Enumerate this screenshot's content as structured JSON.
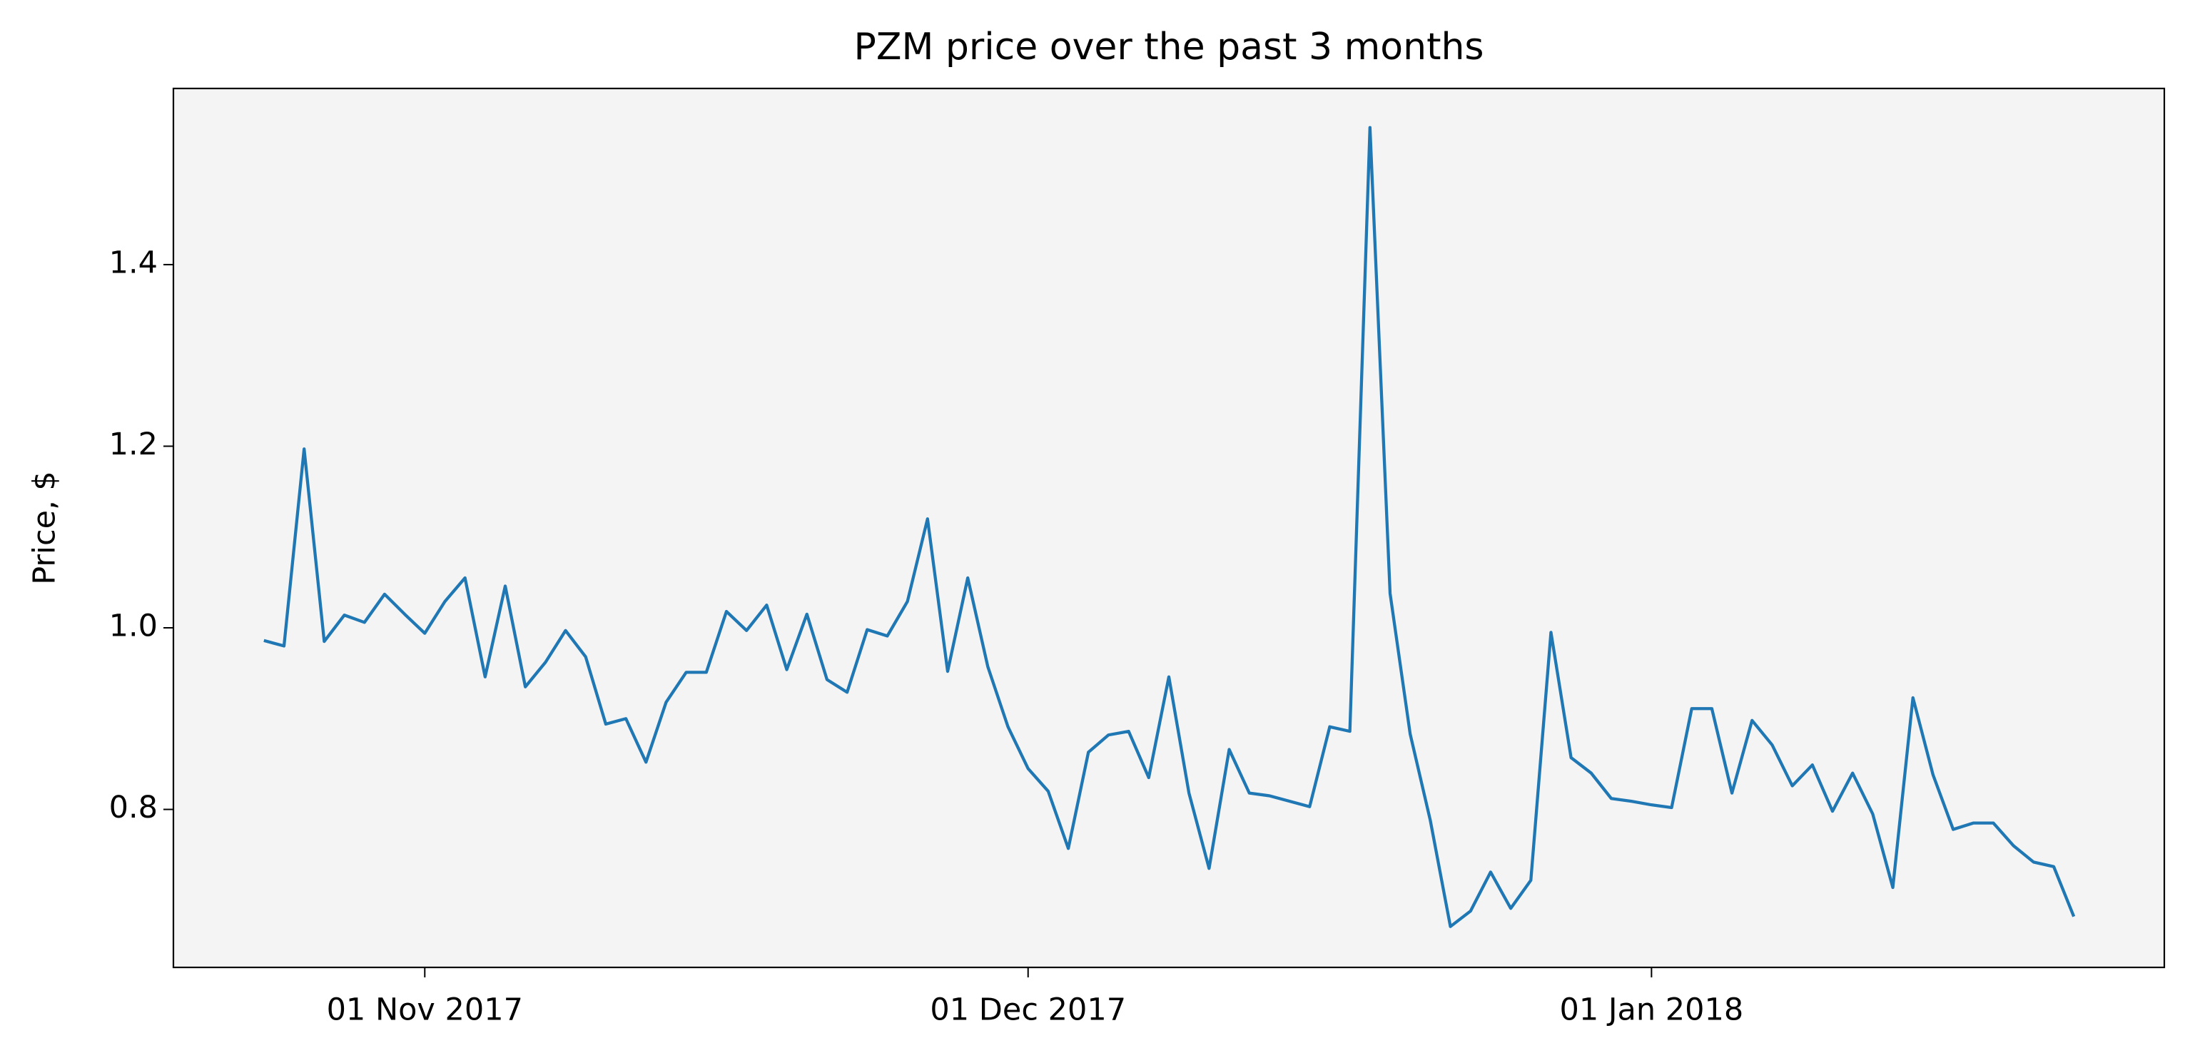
{
  "chart_data": {
    "type": "line",
    "title": "PZM price over the past 3 months",
    "ylabel": "Price, $",
    "x": [
      "2017-10-24",
      "2017-10-25",
      "2017-10-26",
      "2017-10-27",
      "2017-10-28",
      "2017-10-29",
      "2017-10-30",
      "2017-10-31",
      "2017-11-01",
      "2017-11-02",
      "2017-11-03",
      "2017-11-04",
      "2017-11-05",
      "2017-11-06",
      "2017-11-07",
      "2017-11-08",
      "2017-11-09",
      "2017-11-10",
      "2017-11-11",
      "2017-11-12",
      "2017-11-13",
      "2017-11-14",
      "2017-11-15",
      "2017-11-16",
      "2017-11-17",
      "2017-11-18",
      "2017-11-19",
      "2017-11-20",
      "2017-11-21",
      "2017-11-22",
      "2017-11-23",
      "2017-11-24",
      "2017-11-25",
      "2017-11-26",
      "2017-11-27",
      "2017-11-28",
      "2017-11-29",
      "2017-11-30",
      "2017-12-01",
      "2017-12-02",
      "2017-12-03",
      "2017-12-04",
      "2017-12-05",
      "2017-12-06",
      "2017-12-07",
      "2017-12-08",
      "2017-12-09",
      "2017-12-10",
      "2017-12-11",
      "2017-12-12",
      "2017-12-13",
      "2017-12-14",
      "2017-12-15",
      "2017-12-16",
      "2017-12-17",
      "2017-12-18",
      "2017-12-19",
      "2017-12-20",
      "2017-12-21",
      "2017-12-22",
      "2017-12-23",
      "2017-12-24",
      "2017-12-25",
      "2017-12-26",
      "2017-12-27",
      "2017-12-28",
      "2017-12-29",
      "2017-12-30",
      "2017-12-31",
      "2018-01-01",
      "2018-01-02",
      "2018-01-03",
      "2018-01-04",
      "2018-01-05",
      "2018-01-06",
      "2018-01-07",
      "2018-01-08",
      "2018-01-09",
      "2018-01-10",
      "2018-01-11",
      "2018-01-12",
      "2018-01-13",
      "2018-01-14",
      "2018-01-15",
      "2018-01-16",
      "2018-01-17",
      "2018-01-18",
      "2018-01-19",
      "2018-01-20",
      "2018-01-21",
      "2018-01-22"
    ],
    "values": [
      0.986,
      0.98,
      1.197,
      0.985,
      1.014,
      1.006,
      1.037,
      1.015,
      0.994,
      1.029,
      1.055,
      0.946,
      1.046,
      0.935,
      0.962,
      0.997,
      0.968,
      0.894,
      0.9,
      0.852,
      0.918,
      0.951,
      0.951,
      1.018,
      0.997,
      1.025,
      0.954,
      1.015,
      0.943,
      0.929,
      0.998,
      0.991,
      1.029,
      1.12,
      0.952,
      1.055,
      0.957,
      0.891,
      0.845,
      0.82,
      0.757,
      0.863,
      0.882,
      0.886,
      0.835,
      0.946,
      0.818,
      0.735,
      0.866,
      0.818,
      0.815,
      0.809,
      0.803,
      0.891,
      0.886,
      1.551,
      1.038,
      0.883,
      0.788,
      0.671,
      0.688,
      0.731,
      0.691,
      0.722,
      0.995,
      0.857,
      0.84,
      0.812,
      0.809,
      0.805,
      0.802,
      0.911,
      0.911,
      0.818,
      0.898,
      0.871,
      0.826,
      0.849,
      0.798,
      0.84,
      0.795,
      0.714,
      0.923,
      0.838,
      0.778,
      0.785,
      0.785,
      0.76,
      0.742,
      0.737,
      0.682
    ],
    "color": "#1f77b4",
    "xlim": [
      "2017-10-19T12:00:00Z",
      "2018-01-26T12:00:00Z"
    ],
    "xticks": [
      {
        "value": "2017-11-01",
        "label": "01 Nov 2017"
      },
      {
        "value": "2017-12-01",
        "label": "01 Dec 2017"
      },
      {
        "value": "2018-01-01",
        "label": "01 Jan 2018"
      }
    ],
    "ylim": [
      0.626,
      1.594
    ],
    "yticks": [
      0.8,
      {
        "value": 1.0,
        "label": "1.0"
      },
      1.2,
      1.4
    ],
    "grid": false
  }
}
